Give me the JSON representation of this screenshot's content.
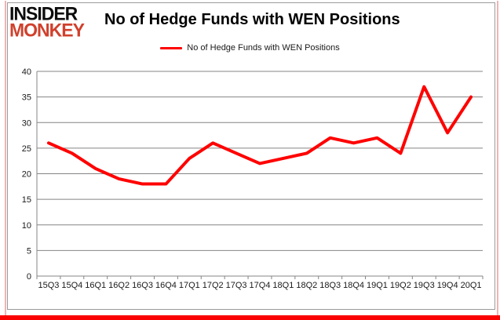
{
  "logo": {
    "line1": "INSIDER",
    "line2": "MONKEY"
  },
  "header": {
    "title": "No of Hedge Funds with WEN Positions"
  },
  "legend": {
    "label": "No of Hedge Funds with WEN Positions"
  },
  "chart_data": {
    "type": "line",
    "title": "No of Hedge Funds with WEN Positions",
    "categories": [
      "15Q3",
      "15Q4",
      "16Q1",
      "16Q2",
      "16Q3",
      "16Q4",
      "17Q1",
      "17Q2",
      "17Q3",
      "17Q4",
      "18Q1",
      "18Q2",
      "18Q3",
      "18Q4",
      "19Q1",
      "19Q2",
      "19Q3",
      "19Q4",
      "20Q1"
    ],
    "series": [
      {
        "name": "No of Hedge Funds with WEN Positions",
        "color": "#ff0000",
        "values": [
          26,
          24,
          21,
          19,
          18,
          18,
          23,
          26,
          24,
          22,
          23,
          24,
          27,
          26,
          27,
          24,
          37,
          28,
          35
        ]
      }
    ],
    "xlabel": "",
    "ylabel": "",
    "ylim": [
      0,
      40
    ],
    "y_ticks": [
      0,
      5,
      10,
      15,
      20,
      25,
      30,
      35,
      40
    ],
    "grid": true,
    "legend_position": "top-center"
  },
  "colors": {
    "series_red": "#ff0000",
    "logo_red": "#d0402c",
    "gridline_gray": "#848484",
    "axis_gray": "#848484",
    "frame_gray": "#9b9b9b",
    "side_border_pink": "#f0b4b4",
    "bottom_border_red": "#fb0202"
  }
}
